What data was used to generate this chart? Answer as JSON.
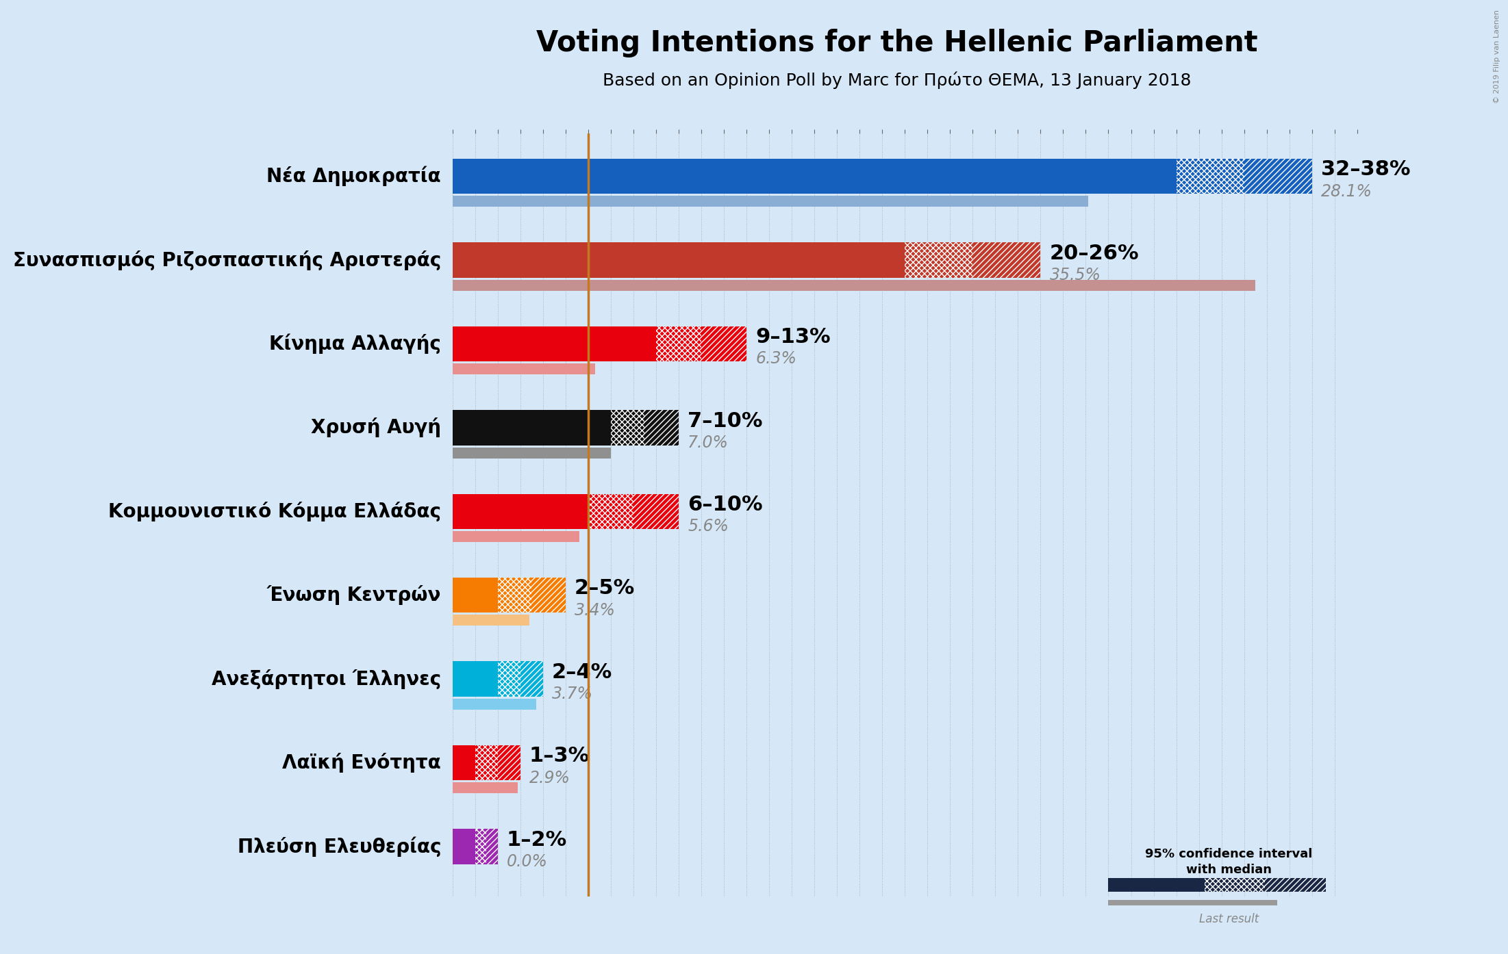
{
  "title": "Voting Intentions for the Hellenic Parliament",
  "subtitle": "Based on an Opinion Poll by Marc for Πρώτο ΘΕΜΑ, 13 January 2018",
  "background_color": "#d6e8f7",
  "parties": [
    "Νέα Δημοκρατία",
    "Συνασπισμός Ριζοσπαστικής Αριστεράς",
    "Κίνημα Αλλαγής",
    "Χρυσή Αυγή",
    "Κομμουνιστικό Κόμμα Ελλάδας",
    "Ένωση Κεντρών",
    "Ανεξάρτητοι Έλληνες",
    "Λαϊκή Ενότητα",
    "Πλεύση Ελευθερίας"
  ],
  "colors": [
    "#1560bd",
    "#c0392b",
    "#e8000d",
    "#111111",
    "#e8000d",
    "#f57c00",
    "#00b0d8",
    "#e8000d",
    "#9c27b0"
  ],
  "low": [
    32,
    20,
    9,
    7,
    6,
    2,
    2,
    1,
    1
  ],
  "median": [
    35,
    23,
    11,
    8.5,
    8,
    3.5,
    3,
    2,
    1.5
  ],
  "high": [
    38,
    26,
    13,
    10,
    10,
    5,
    4,
    3,
    2
  ],
  "last_result": [
    28.1,
    35.5,
    6.3,
    7.0,
    5.6,
    3.4,
    3.7,
    2.9,
    0.0
  ],
  "last_result_colors": [
    "#8aadd4",
    "#c49090",
    "#e89090",
    "#909090",
    "#e89090",
    "#f5c080",
    "#80ccee",
    "#e89090",
    "#c090cc"
  ],
  "ci_labels": [
    "32–38%",
    "20–26%",
    "9–13%",
    "7–10%",
    "6–10%",
    "2–5%",
    "2–4%",
    "1–3%",
    "1–2%"
  ],
  "last_labels": [
    "28.1%",
    "35.5%",
    "6.3%",
    "7.0%",
    "5.6%",
    "3.4%",
    "3.7%",
    "2.9%",
    "0.0%"
  ],
  "median_line_color": "#c47820",
  "xlim": [
    0,
    40
  ],
  "title_fontsize": 30,
  "subtitle_fontsize": 18,
  "party_label_fontsize": 20,
  "ci_label_fontsize": 22,
  "last_label_fontsize": 17
}
